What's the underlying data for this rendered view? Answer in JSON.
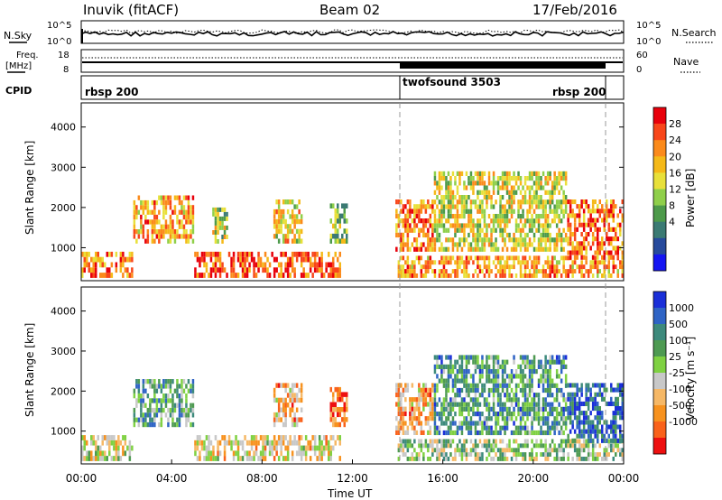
{
  "header": {
    "station": "Inuvik (fitACF)",
    "beam": "Beam 02",
    "date": "17/Feb/2016"
  },
  "noise_panel": {
    "left_label": "N.Sky",
    "left_ticks": [
      "10^5",
      "10^0"
    ],
    "right_label": "N.Search",
    "right_ticks": [
      "10^5",
      "10^0"
    ]
  },
  "freq_panel": {
    "left_label_1": "Freq.",
    "left_label_2": "[MHz]",
    "left_ticks": [
      "18",
      "8"
    ],
    "right_label": "Nave",
    "right_ticks": [
      "60",
      "0"
    ]
  },
  "cpid_panel": {
    "label": "CPID",
    "segments": [
      {
        "name": "rbsp 200",
        "start_h": 0,
        "end_h": 14.0
      },
      {
        "name": "twofsound 3503",
        "start_h": 14.0,
        "end_h": 23.0
      },
      {
        "name": "rbsp 200",
        "start_h": 23.0,
        "end_h": 24.0
      }
    ]
  },
  "chart_data": [
    {
      "type": "heatmap",
      "title": "",
      "xlabel": "Time UT",
      "ylabel": "Slant Range [km]",
      "xlim": [
        0,
        24
      ],
      "ylim": [
        180,
        4600
      ],
      "x_ticks": [
        "00:00",
        "04:00",
        "08:00",
        "12:00",
        "16:00",
        "20:00",
        "00:00"
      ],
      "y_ticks": [
        1000,
        2000,
        3000,
        4000
      ],
      "colorbar": {
        "label": "Power [dB]",
        "tick_labels": [
          "28",
          "24",
          "20",
          "16",
          "12",
          "8",
          "4"
        ],
        "colors": [
          "#e8000b",
          "#f8461a",
          "#fb8a1b",
          "#f5b918",
          "#e8e03a",
          "#8fcf4a",
          "#4d9a4a",
          "#3b7a73",
          "#274a9c",
          "#1515f2"
        ]
      },
      "echo_regions": [
        {
          "t0": 0.0,
          "t1": 2.3,
          "r0": 250,
          "r1": 900,
          "level": 0.75
        },
        {
          "t0": 2.3,
          "t1": 5.0,
          "r0": 1100,
          "r1": 2300,
          "level": 0.7
        },
        {
          "t0": 5.0,
          "t1": 11.5,
          "r0": 250,
          "r1": 900,
          "level": 0.85
        },
        {
          "t0": 5.8,
          "t1": 6.5,
          "r0": 1100,
          "r1": 2000,
          "level": 0.5
        },
        {
          "t0": 8.5,
          "t1": 9.8,
          "r0": 1100,
          "r1": 2200,
          "level": 0.6
        },
        {
          "t0": 11.0,
          "t1": 11.8,
          "r0": 1100,
          "r1": 2100,
          "level": 0.45
        },
        {
          "t0": 13.9,
          "t1": 15.6,
          "r0": 900,
          "r1": 2200,
          "level": 0.75
        },
        {
          "t0": 14.0,
          "t1": 24.0,
          "r0": 250,
          "r1": 800,
          "level": 0.7
        },
        {
          "t0": 15.6,
          "t1": 21.5,
          "r0": 900,
          "r1": 2900,
          "level": 0.55
        },
        {
          "t0": 21.5,
          "t1": 24.0,
          "r0": 700,
          "r1": 2200,
          "level": 0.8
        }
      ]
    },
    {
      "type": "heatmap",
      "title": "",
      "xlabel": "Time UT",
      "ylabel": "Slant Range [km]",
      "xlim": [
        0,
        24
      ],
      "ylim": [
        180,
        4600
      ],
      "x_ticks": [
        "00:00",
        "04:00",
        "08:00",
        "12:00",
        "16:00",
        "20:00",
        "00:00"
      ],
      "y_ticks": [
        1000,
        2000,
        3000,
        4000
      ],
      "colorbar": {
        "label": "Velocity [m s⁻¹]",
        "tick_labels": [
          "1000",
          "500",
          "100",
          "25",
          "-25",
          "-100",
          "-500",
          "-1000"
        ],
        "colors": [
          "#1a2fd8",
          "#2f64c5",
          "#3d8a7c",
          "#4e9a52",
          "#7fd142",
          "#c8c8c8",
          "#f6b866",
          "#f7921f",
          "#f9621b",
          "#ee1010"
        ]
      },
      "echo_regions": [
        {
          "t0": 0.0,
          "t1": 2.3,
          "r0": 250,
          "r1": 900,
          "level": 0.45
        },
        {
          "t0": 2.3,
          "t1": 5.0,
          "r0": 1100,
          "r1": 2300,
          "level": 0.65
        },
        {
          "t0": 5.0,
          "t1": 11.5,
          "r0": 250,
          "r1": 900,
          "level": 0.4
        },
        {
          "t0": 8.5,
          "t1": 9.8,
          "r0": 1100,
          "r1": 2200,
          "level": 0.3
        },
        {
          "t0": 11.0,
          "t1": 11.8,
          "r0": 1100,
          "r1": 2100,
          "level": 0.15
        },
        {
          "t0": 13.9,
          "t1": 15.6,
          "r0": 900,
          "r1": 2200,
          "level": 0.3
        },
        {
          "t0": 14.0,
          "t1": 24.0,
          "r0": 250,
          "r1": 800,
          "level": 0.55
        },
        {
          "t0": 15.6,
          "t1": 21.5,
          "r0": 900,
          "r1": 2900,
          "level": 0.7
        },
        {
          "t0": 21.5,
          "t1": 24.0,
          "r0": 700,
          "r1": 2200,
          "level": 0.85
        }
      ]
    }
  ]
}
